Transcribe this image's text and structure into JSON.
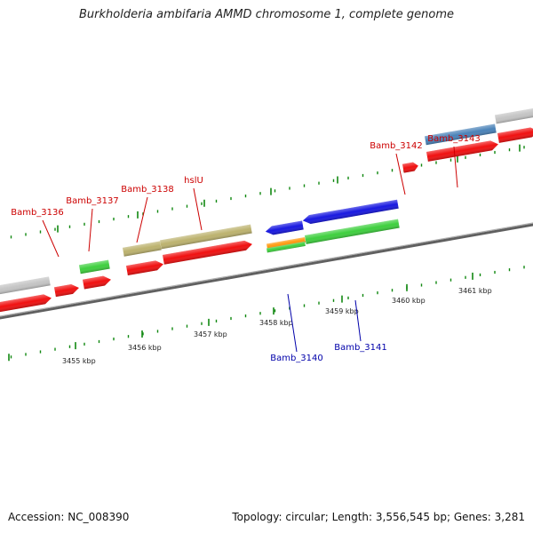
{
  "title": "Burkholderia ambifaria AMMD chromosome 1, complete genome",
  "footer": {
    "accession": "Accession: NC_008390",
    "summary": "Topology: circular; Length: 3,556,545 bp; Genes: 3,281"
  },
  "colors": {
    "red": "#f01010",
    "green": "#3ecf3e",
    "blue": "#1818e0",
    "olive": "#bcb26e",
    "gray": "#c4c4c4",
    "steel": "#4a82b8",
    "orange": "#ff9a10",
    "label_red": "#cc0000",
    "label_blue": "#0000aa",
    "tick_green": "#118811",
    "backbone": "#808080"
  },
  "axis": {
    "tick_labels": [
      "3455 kbp",
      "3456 kbp",
      "3457 kbp",
      "3458 kbp",
      "3459 kbp",
      "3460 kbp",
      "3461 kbp"
    ]
  },
  "gene_labels": [
    {
      "text": "Bamb_3136",
      "color": "label_red"
    },
    {
      "text": "Bamb_3137",
      "color": "label_red"
    },
    {
      "text": "Bamb_3138",
      "color": "label_red"
    },
    {
      "text": "hslU",
      "color": "label_red"
    },
    {
      "text": "Bamb_3142",
      "color": "label_red"
    },
    {
      "text": "Bamb_3143",
      "color": "label_red"
    },
    {
      "text": "Bamb_3140",
      "color": "label_blue"
    },
    {
      "text": "Bamb_3141",
      "color": "label_blue"
    }
  ]
}
